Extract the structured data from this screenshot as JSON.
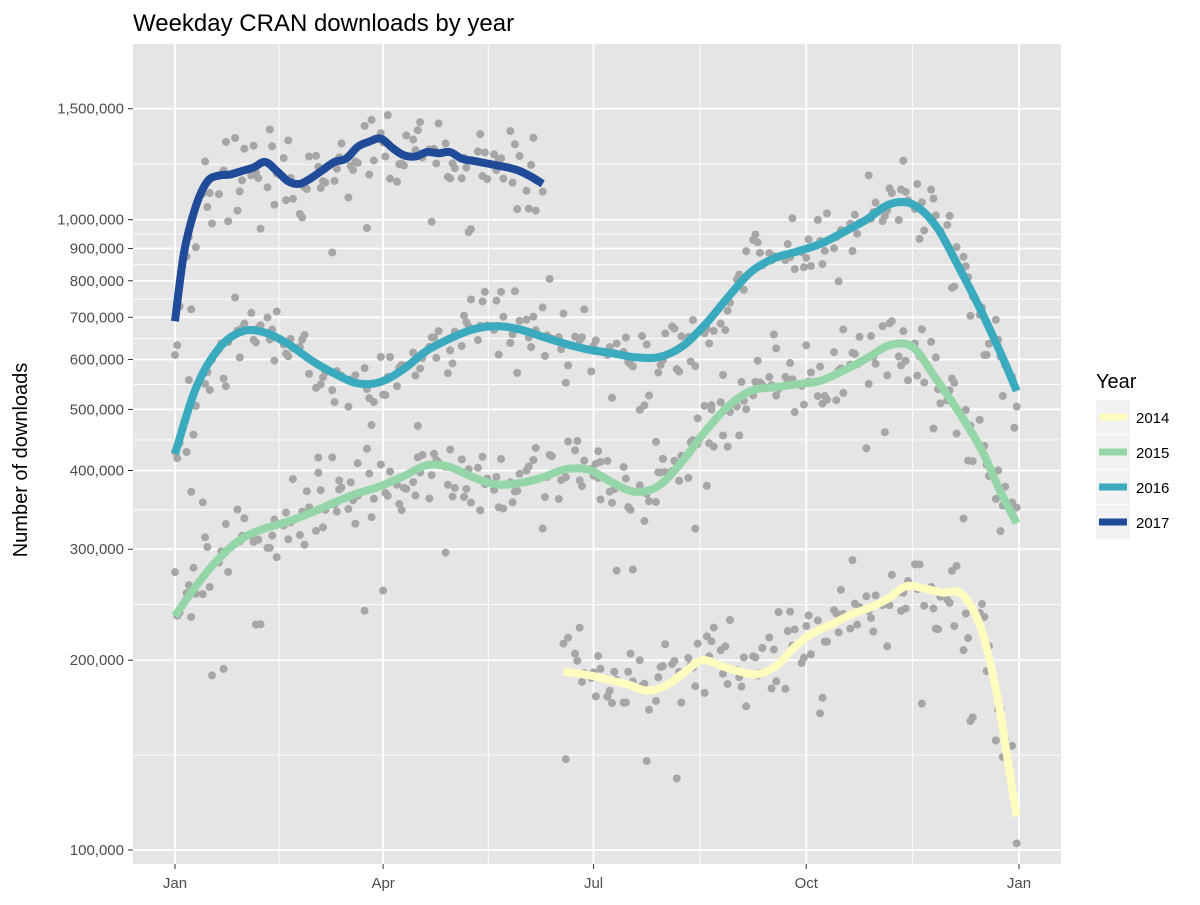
{
  "chart_data": {
    "type": "line",
    "title": "Weekday CRAN downloads by year",
    "xlabel": "",
    "ylabel": "Number of downloads",
    "x_scale": "day-of-year",
    "y_scale": "log10",
    "xlim": [
      1,
      366
    ],
    "ylim": [
      95000,
      1900000
    ],
    "x_ticks": [
      {
        "label": "Jan",
        "day": 1
      },
      {
        "label": "Apr",
        "day": 91
      },
      {
        "label": "Jul",
        "day": 182
      },
      {
        "label": "Oct",
        "day": 274
      },
      {
        "label": "Jan",
        "day": 366
      }
    ],
    "y_ticks": [
      100000,
      200000,
      300000,
      400000,
      500000,
      600000,
      700000,
      800000,
      900000,
      1000000,
      1500000
    ],
    "y_tick_labels": [
      "100,000",
      "200,000",
      "300,000",
      "400,000",
      "500,000",
      "600,000",
      "700,000",
      "800,000",
      "900,000",
      "1,000,000",
      "1,500,000"
    ],
    "grid": true,
    "legend": {
      "title": "Year",
      "position": "right"
    },
    "colors": {
      "panel": "#e5e5e5",
      "grid": "#ffffff",
      "points": "#a6a6a6",
      "2014": "#fffcc0",
      "2015": "#94d6a8",
      "2016": "#3aabbf",
      "2017": "#1f4b98"
    },
    "series": [
      {
        "name": "2014",
        "x": [
          169,
          181,
          189,
          197,
          205,
          213,
          221,
          229,
          237,
          245,
          253,
          261,
          269,
          277,
          285,
          293,
          301,
          309,
          317,
          325,
          333,
          341,
          349,
          356,
          361,
          365
        ],
        "y": [
          192000,
          189000,
          186000,
          183000,
          179000,
          182000,
          191000,
          200000,
          196000,
          192000,
          190000,
          196000,
          210000,
          221000,
          228000,
          236000,
          242000,
          250000,
          262000,
          260000,
          256000,
          255000,
          228000,
          180000,
          140000,
          113000
        ]
      },
      {
        "name": "2015",
        "x": [
          1,
          10,
          20,
          30,
          40,
          50,
          60,
          70,
          80,
          90,
          100,
          110,
          120,
          130,
          140,
          150,
          160,
          170,
          180,
          190,
          200,
          210,
          220,
          230,
          240,
          250,
          260,
          270,
          280,
          290,
          300,
          310,
          320,
          330,
          340,
          350,
          358,
          365
        ],
        "y": [
          235000,
          262000,
          290000,
          312000,
          324000,
          332000,
          343000,
          356000,
          368000,
          378000,
          392000,
          408000,
          405000,
          390000,
          380000,
          382000,
          390000,
          402000,
          401000,
          383000,
          370000,
          378000,
          412000,
          460000,
          505000,
          535000,
          542000,
          548000,
          555000,
          576000,
          602000,
          632000,
          628000,
          560000,
          495000,
          430000,
          370000,
          330000
        ]
      },
      {
        "name": "2016",
        "x": [
          1,
          10,
          20,
          30,
          40,
          50,
          60,
          70,
          80,
          90,
          100,
          110,
          120,
          130,
          140,
          150,
          160,
          170,
          180,
          190,
          200,
          210,
          220,
          230,
          240,
          250,
          260,
          270,
          280,
          290,
          300,
          310,
          320,
          330,
          340,
          350,
          358,
          365
        ],
        "y": [
          425000,
          540000,
          625000,
          665000,
          662000,
          635000,
          598000,
          570000,
          550000,
          553000,
          580000,
          620000,
          648000,
          670000,
          678000,
          670000,
          652000,
          635000,
          622000,
          614000,
          605000,
          605000,
          628000,
          680000,
          752000,
          826000,
          868000,
          890000,
          915000,
          955000,
          1000000,
          1058000,
          1058000,
          978000,
          840000,
          712000,
          615000,
          535000
        ]
      },
      {
        "name": "2017",
        "x": [
          1,
          5,
          10,
          15,
          20,
          25,
          30,
          35,
          40,
          45,
          50,
          55,
          60,
          65,
          70,
          75,
          80,
          85,
          90,
          95,
          100,
          105,
          110,
          115,
          120,
          125,
          130,
          135,
          140,
          145,
          150,
          155,
          160
        ],
        "y": [
          690000,
          890000,
          1050000,
          1150000,
          1175000,
          1180000,
          1195000,
          1210000,
          1235000,
          1195000,
          1150000,
          1140000,
          1165000,
          1200000,
          1235000,
          1250000,
          1305000,
          1330000,
          1345000,
          1300000,
          1265000,
          1260000,
          1280000,
          1275000,
          1280000,
          1250000,
          1240000,
          1230000,
          1220000,
          1210000,
          1195000,
          1170000,
          1140000
        ]
      }
    ]
  }
}
